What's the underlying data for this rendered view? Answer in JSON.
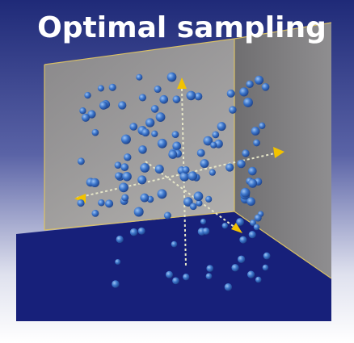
{
  "header": {
    "title": "Optimal sampling"
  }
}
